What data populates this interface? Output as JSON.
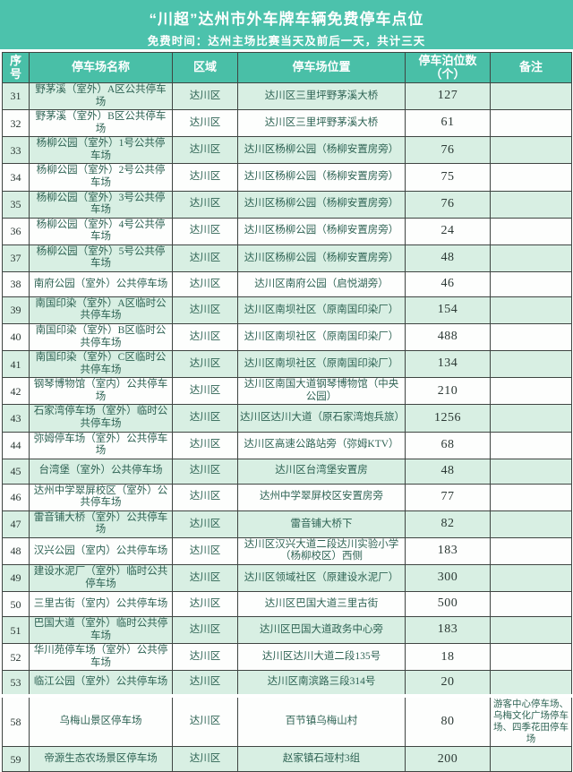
{
  "banner": {
    "title": "“川超”达州市外车牌车辆免费停车点位",
    "subtitle": "免费时间：达州主场比赛当天及前后一天，共计三天"
  },
  "colors": {
    "banner_bg": "#4cc2ac",
    "header_bg": "#49bfa7",
    "row_green": "#d8efe3",
    "row_white": "#fdfefd",
    "border": "#3f4542",
    "text": "#2e6354",
    "num": "#2b3834",
    "header_text": "#ffffff"
  },
  "table": {
    "columns": [
      "序号",
      "停车场名称",
      "区域",
      "停车场位置",
      "停车泊位数\n（个）",
      "备注"
    ],
    "rows": [
      {
        "no": "31",
        "name": "野茅溪（室外）A区公共停车场",
        "district": "达川区",
        "location": "达川区三里坪野茅溪大桥",
        "spots": "127",
        "remark": ""
      },
      {
        "no": "32",
        "name": "野茅溪（室外）B区公共停车场",
        "district": "达川区",
        "location": "达川区三里坪野茅溪大桥",
        "spots": "61",
        "remark": ""
      },
      {
        "no": "33",
        "name": "杨柳公园（室外）1号公共停车场",
        "district": "达川区",
        "location": "达川区杨柳公园（杨柳安置房旁）",
        "spots": "76",
        "remark": ""
      },
      {
        "no": "34",
        "name": "杨柳公园（室外）2号公共停车场",
        "district": "达川区",
        "location": "达川区杨柳公园（杨柳安置房旁）",
        "spots": "75",
        "remark": ""
      },
      {
        "no": "35",
        "name": "杨柳公园（室外）3号公共停车场",
        "district": "达川区",
        "location": "达川区杨柳公园（杨柳安置房旁）",
        "spots": "76",
        "remark": ""
      },
      {
        "no": "36",
        "name": "杨柳公园（室外）4号公共停车场",
        "district": "达川区",
        "location": "达川区杨柳公园（杨柳安置房旁）",
        "spots": "24",
        "remark": ""
      },
      {
        "no": "37",
        "name": "杨柳公园（室外）5号公共停车场",
        "district": "达川区",
        "location": "达川区杨柳公园（杨柳安置房旁）",
        "spots": "48",
        "remark": ""
      },
      {
        "no": "38",
        "name": "南府公园（室外）公共停车场",
        "district": "达川区",
        "location": "达川区南府公园（启悦湖旁）",
        "spots": "46",
        "remark": ""
      },
      {
        "no": "39",
        "name": "南国印染（室外）A区临时公共停车场",
        "district": "达川区",
        "location": "达川区南坝社区（原南国印染厂）",
        "spots": "154",
        "remark": ""
      },
      {
        "no": "40",
        "name": "南国印染（室外）B区临时公共停车场",
        "district": "达川区",
        "location": "达川区南坝社区（原南国印染厂）",
        "spots": "488",
        "remark": ""
      },
      {
        "no": "41",
        "name": "南国印染（室外）C区临时公共停车场",
        "district": "达川区",
        "location": "达川区南坝社区（原南国印染厂）",
        "spots": "134",
        "remark": ""
      },
      {
        "no": "42",
        "name": "钢琴博物馆（室内）公共停车场",
        "district": "达川区",
        "location": "达川区南国大道钢琴博物馆（中央公园）",
        "spots": "210",
        "remark": ""
      },
      {
        "no": "43",
        "name": "石家湾停车场（室外）临时公共停车场",
        "district": "达川区",
        "location": "达川区达川大道（原石家湾炮兵旅）",
        "spots": "1256",
        "remark": ""
      },
      {
        "no": "44",
        "name": "弥姆停车场（室外）公共停车场",
        "district": "达川区",
        "location": "达川区高速公路站旁（弥姆KTV）",
        "spots": "68",
        "remark": ""
      },
      {
        "no": "45",
        "name": "台湾堡（室外）公共停车场",
        "district": "达川区",
        "location": "达川区台湾堡安置房",
        "spots": "48",
        "remark": ""
      },
      {
        "no": "46",
        "name": "达州中学翠屏校区（室外）公共停车场",
        "district": "达川区",
        "location": "达州中学翠屏校区安置房旁",
        "spots": "77",
        "remark": ""
      },
      {
        "no": "47",
        "name": "雷音铺大桥（室外）公共停车场",
        "district": "达川区",
        "location": "雷音铺大桥下",
        "spots": "82",
        "remark": ""
      },
      {
        "no": "48",
        "name": "汉兴公园（室内）公共停车场",
        "district": "达川区",
        "location": "达川区汉兴大道二段达川实验小学（杨柳校区）西侧",
        "spots": "183",
        "remark": ""
      },
      {
        "no": "49",
        "name": "建设水泥厂（室外）临时公共停车场",
        "district": "达川区",
        "location": "达川区领域社区（原建设水泥厂）",
        "spots": "300",
        "remark": ""
      },
      {
        "no": "50",
        "name": "三里古街（室内）公共停车场",
        "district": "达川区",
        "location": "达川区巴国大道三里古街",
        "spots": "500",
        "remark": ""
      },
      {
        "no": "51",
        "name": "巴国大道（室外）临时公共停车场",
        "district": "达川区",
        "location": "达川区巴国大道政务中心旁",
        "spots": "183",
        "remark": ""
      },
      {
        "no": "52",
        "name": "华川苑停车场（室外）公共停车场",
        "district": "达川区",
        "location": "达川区达川大道二段135号",
        "spots": "18",
        "remark": ""
      },
      {
        "no": "53",
        "name": "临江公园（室外）公共停车场",
        "district": "达川区",
        "location": "达川区南滨路三段314号",
        "spots": "20",
        "remark": ""
      },
      {
        "no": "58",
        "name": "乌梅山景区停车场",
        "district": "达川区",
        "location": "百节镇乌梅山村",
        "spots": "80",
        "remark": "游客中心停车场、乌梅文化广场停车场、四季花田停车场"
      },
      {
        "no": "59",
        "name": "帝源生态农场景区停车场",
        "district": "达川区",
        "location": "赵家镇石垭村3组",
        "spots": "200",
        "remark": ""
      }
    ]
  }
}
